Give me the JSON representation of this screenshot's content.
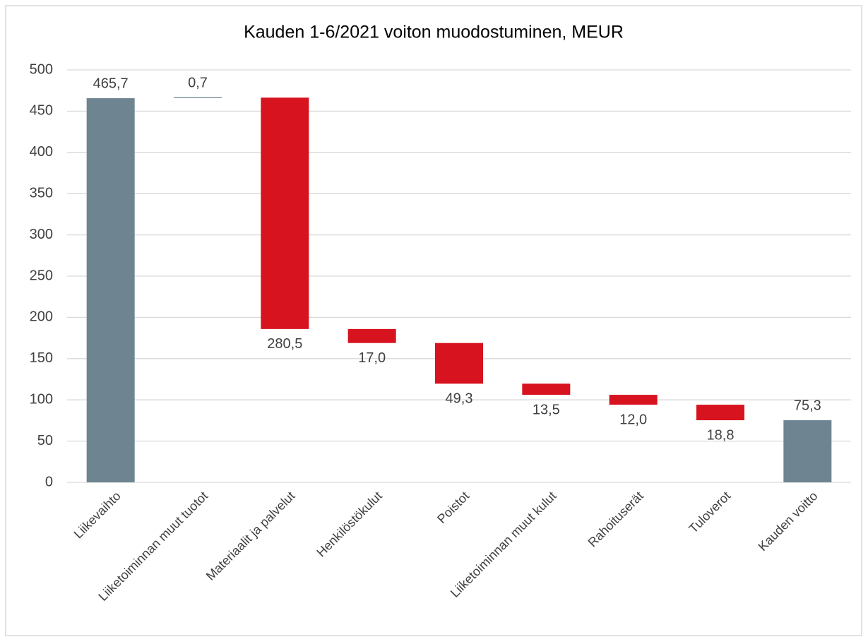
{
  "chart_data": {
    "type": "waterfall",
    "title": "Kauden 1-6/2021 voiton muodostuminen, MEUR",
    "categories": [
      "Liikevaihto",
      "Liiketoiminnan muut tuotot",
      "Materiaalit ja palvelut",
      "Henkilöstökulut",
      "Poistot",
      "Liiketoiminnan muut kulut",
      "Rahoituserät",
      "Tuloverot",
      "Kauden voitto"
    ],
    "values": [
      465.7,
      0.7,
      -280.5,
      -17.0,
      -49.3,
      -13.5,
      -12.0,
      -18.8,
      75.3
    ],
    "value_labels": [
      "465,7",
      "0,7",
      "280,5",
      "17,0",
      "49,3",
      "13,5",
      "12,0",
      "18,8",
      "75,3"
    ],
    "measure": [
      "total",
      "relative",
      "relative",
      "relative",
      "relative",
      "relative",
      "relative",
      "relative",
      "total"
    ],
    "colors": {
      "total": "#6e8591",
      "increase": "#6e8591",
      "decrease": "#d7131f"
    },
    "ylim": [
      0,
      500
    ],
    "yticks": [
      0,
      50,
      100,
      150,
      200,
      250,
      300,
      350,
      400,
      450,
      500
    ],
    "grid": true
  }
}
